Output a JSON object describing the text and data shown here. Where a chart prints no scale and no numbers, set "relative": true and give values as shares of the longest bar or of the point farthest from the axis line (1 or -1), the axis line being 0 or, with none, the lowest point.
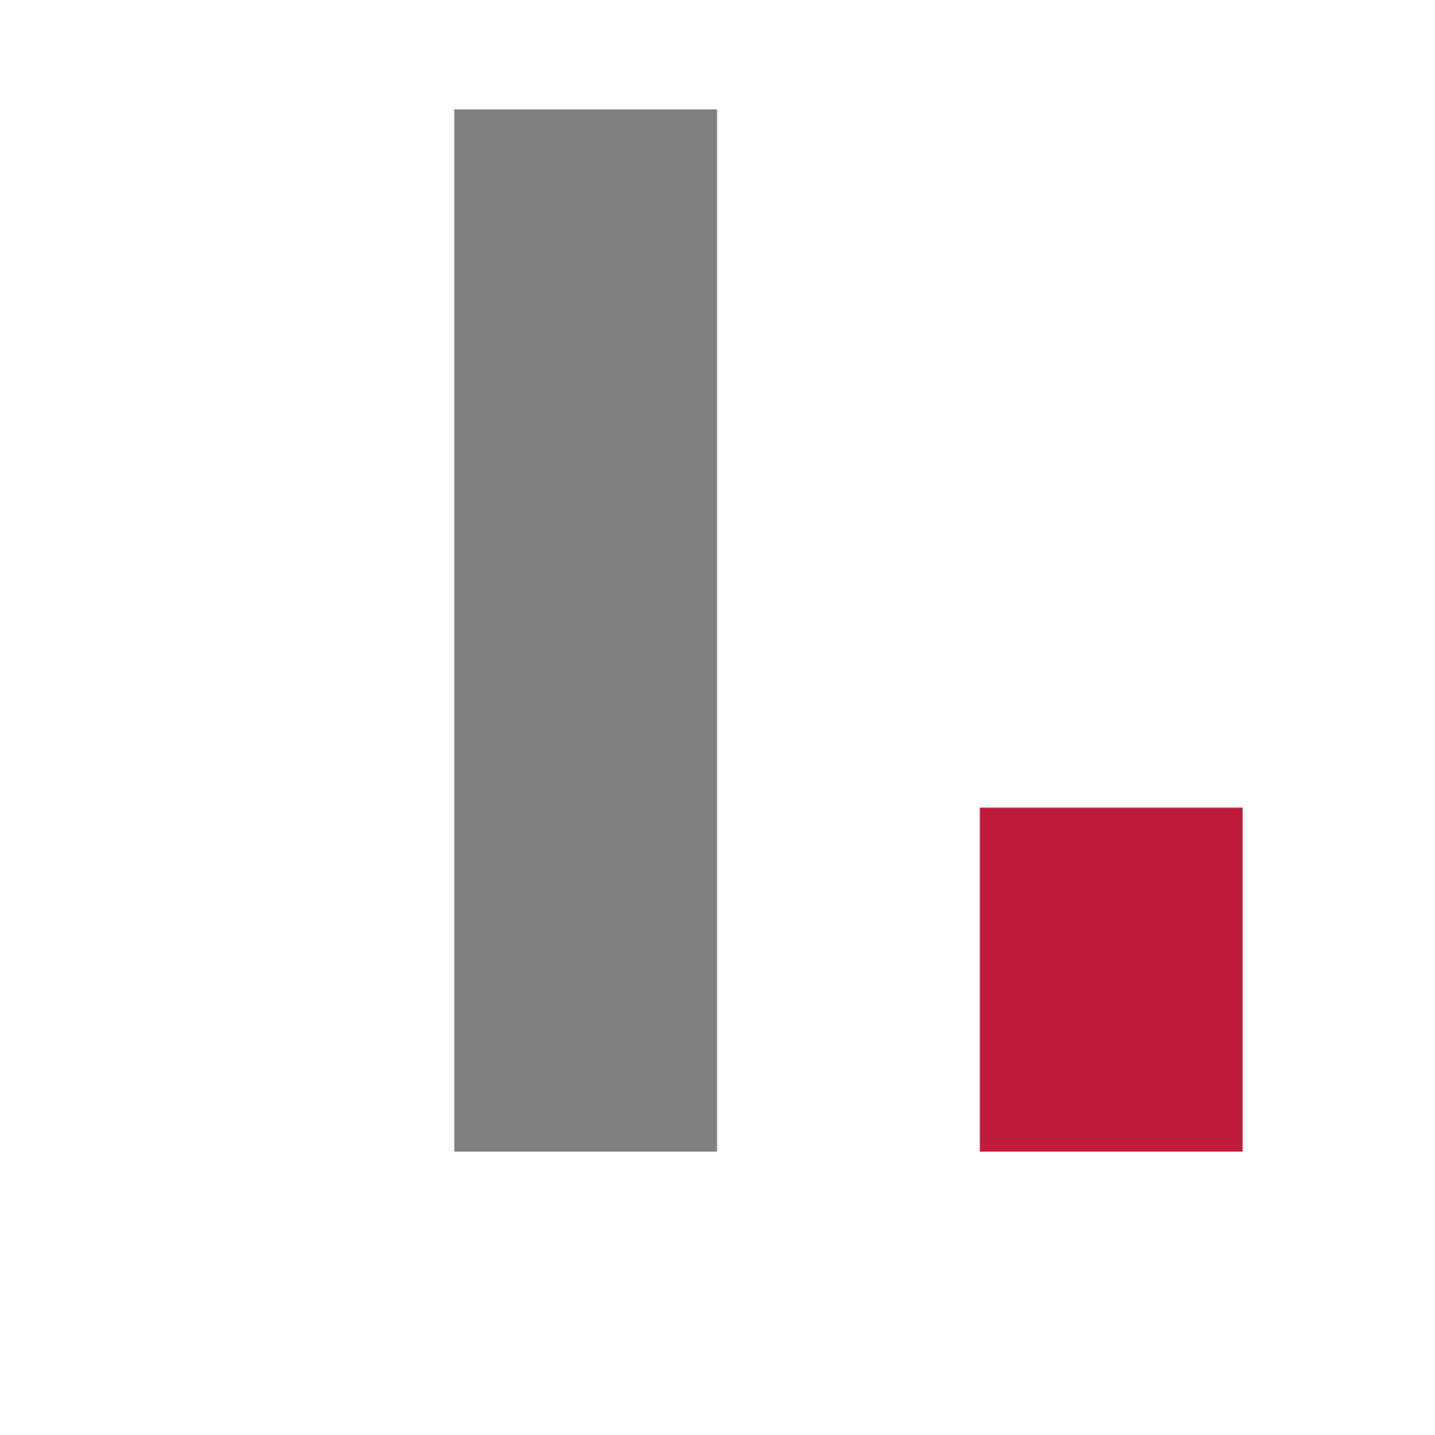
{
  "chart_data": {
    "type": "bar",
    "relative": true,
    "categories": [
      null,
      null
    ],
    "values": [
      1,
      0.33
    ],
    "colors": [
      "#808080",
      "#be1b3e"
    ]
  }
}
